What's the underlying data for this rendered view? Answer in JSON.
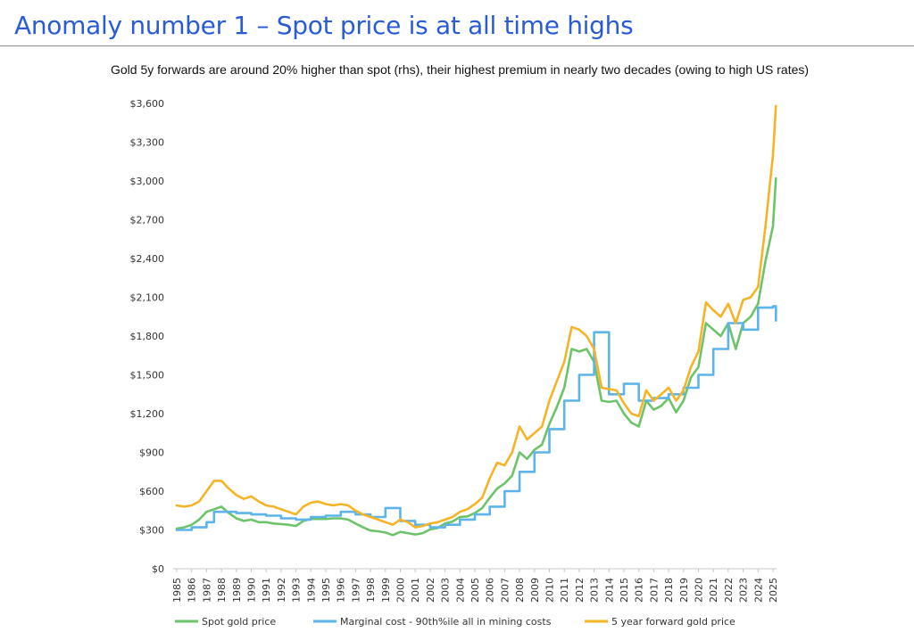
{
  "header": {
    "title": "Anomaly number 1 – Spot price is at all time highs"
  },
  "chart_data": {
    "type": "line",
    "title": "",
    "subtitle": "Gold 5y forwards are around 20% higher than spot (rhs), their highest premium in nearly two decades (owing to high US rates)",
    "xlabel": "",
    "ylabel": "",
    "ylim": [
      0,
      3600
    ],
    "xlim": [
      1985,
      2025
    ],
    "x_tick_labels": [
      "1985",
      "1986",
      "1987",
      "1988",
      "1989",
      "1990",
      "1991",
      "1992",
      "1993",
      "1994",
      "1995",
      "1996",
      "1997",
      "1998",
      "1999",
      "2000",
      "2001",
      "2002",
      "2003",
      "2004",
      "2005",
      "2006",
      "2007",
      "2008",
      "2009",
      "2010",
      "2011",
      "2012",
      "2013",
      "2014",
      "2015",
      "2016",
      "2017",
      "2018",
      "2019",
      "2020",
      "2021",
      "2022",
      "2023",
      "2024",
      "2025"
    ],
    "y_ticks": [
      0,
      300,
      600,
      900,
      1200,
      1500,
      1800,
      2100,
      2400,
      2700,
      3000,
      3300,
      3600
    ],
    "y_tick_labels": [
      "$0",
      "$300",
      "$600",
      "$900",
      "$1,200",
      "$1,500",
      "$1,800",
      "$2,100",
      "$2,400",
      "$2,700",
      "$3,000",
      "$3,300",
      "$3,600"
    ],
    "grid": false,
    "legend_position": "bottom",
    "series": [
      {
        "name": "Spot gold price",
        "color": "#6cc36a",
        "points": [
          [
            1985,
            310
          ],
          [
            1985.5,
            320
          ],
          [
            1986,
            340
          ],
          [
            1986.5,
            380
          ],
          [
            1987,
            440
          ],
          [
            1987.5,
            460
          ],
          [
            1988,
            480
          ],
          [
            1988.5,
            430
          ],
          [
            1989,
            390
          ],
          [
            1989.5,
            370
          ],
          [
            1990,
            380
          ],
          [
            1990.5,
            360
          ],
          [
            1991,
            360
          ],
          [
            1991.5,
            350
          ],
          [
            1992,
            345
          ],
          [
            1992.5,
            340
          ],
          [
            1993,
            330
          ],
          [
            1993.5,
            370
          ],
          [
            1994,
            385
          ],
          [
            1994.5,
            385
          ],
          [
            1995,
            385
          ],
          [
            1995.5,
            390
          ],
          [
            1996,
            390
          ],
          [
            1996.5,
            380
          ],
          [
            1997,
            350
          ],
          [
            1997.5,
            320
          ],
          [
            1998,
            295
          ],
          [
            1998.5,
            290
          ],
          [
            1999,
            280
          ],
          [
            1999.5,
            260
          ],
          [
            2000,
            285
          ],
          [
            2000.5,
            275
          ],
          [
            2001,
            265
          ],
          [
            2001.5,
            275
          ],
          [
            2002,
            305
          ],
          [
            2002.5,
            315
          ],
          [
            2003,
            350
          ],
          [
            2003.5,
            365
          ],
          [
            2004,
            400
          ],
          [
            2004.5,
            405
          ],
          [
            2005,
            430
          ],
          [
            2005.5,
            470
          ],
          [
            2006,
            550
          ],
          [
            2006.5,
            620
          ],
          [
            2007,
            660
          ],
          [
            2007.5,
            720
          ],
          [
            2008,
            900
          ],
          [
            2008.5,
            850
          ],
          [
            2009,
            920
          ],
          [
            2009.5,
            960
          ],
          [
            2010,
            1120
          ],
          [
            2010.5,
            1250
          ],
          [
            2011,
            1400
          ],
          [
            2011.5,
            1700
          ],
          [
            2012,
            1680
          ],
          [
            2012.5,
            1700
          ],
          [
            2013,
            1600
          ],
          [
            2013.5,
            1300
          ],
          [
            2014,
            1290
          ],
          [
            2014.5,
            1300
          ],
          [
            2015,
            1200
          ],
          [
            2015.5,
            1130
          ],
          [
            2016,
            1100
          ],
          [
            2016.5,
            1300
          ],
          [
            2017,
            1230
          ],
          [
            2017.5,
            1260
          ],
          [
            2018,
            1320
          ],
          [
            2018.5,
            1210
          ],
          [
            2019,
            1300
          ],
          [
            2019.5,
            1480
          ],
          [
            2020,
            1560
          ],
          [
            2020.5,
            1900
          ],
          [
            2021,
            1850
          ],
          [
            2021.5,
            1800
          ],
          [
            2022,
            1900
          ],
          [
            2022.5,
            1700
          ],
          [
            2023,
            1900
          ],
          [
            2023.5,
            1950
          ],
          [
            2024,
            2050
          ],
          [
            2024.5,
            2380
          ],
          [
            2025,
            2650
          ],
          [
            2025.2,
            3020
          ]
        ]
      },
      {
        "name": "Marginal cost - 90th%ile all in mining costs",
        "color": "#5cb4ea",
        "points": [
          [
            1985,
            300
          ],
          [
            1986,
            320
          ],
          [
            1987,
            360
          ],
          [
            1987.5,
            440
          ],
          [
            1989,
            430
          ],
          [
            1990,
            420
          ],
          [
            1991,
            410
          ],
          [
            1992,
            390
          ],
          [
            1993,
            380
          ],
          [
            1994,
            400
          ],
          [
            1995,
            410
          ],
          [
            1996,
            440
          ],
          [
            1997,
            420
          ],
          [
            1998,
            400
          ],
          [
            1999,
            470
          ],
          [
            2000,
            370
          ],
          [
            2001,
            340
          ],
          [
            2002,
            320
          ],
          [
            2003,
            340
          ],
          [
            2004,
            380
          ],
          [
            2005,
            420
          ],
          [
            2006,
            480
          ],
          [
            2007,
            600
          ],
          [
            2008,
            750
          ],
          [
            2009,
            900
          ],
          [
            2010,
            1080
          ],
          [
            2011,
            1300
          ],
          [
            2012,
            1500
          ],
          [
            2013,
            1830
          ],
          [
            2014,
            1350
          ],
          [
            2015,
            1430
          ],
          [
            2016,
            1300
          ],
          [
            2017,
            1320
          ],
          [
            2018,
            1350
          ],
          [
            2019,
            1400
          ],
          [
            2020,
            1500
          ],
          [
            2021,
            1700
          ],
          [
            2022,
            1900
          ],
          [
            2023,
            1850
          ],
          [
            2024,
            2020
          ],
          [
            2025,
            2030
          ],
          [
            2025.2,
            1920
          ]
        ]
      },
      {
        "name": "5 year forward gold price",
        "color": "#f5b325",
        "points": [
          [
            1985,
            490
          ],
          [
            1985.5,
            480
          ],
          [
            1986,
            490
          ],
          [
            1986.5,
            520
          ],
          [
            1987,
            600
          ],
          [
            1987.5,
            680
          ],
          [
            1988,
            680
          ],
          [
            1988.5,
            620
          ],
          [
            1989,
            570
          ],
          [
            1989.5,
            540
          ],
          [
            1990,
            560
          ],
          [
            1990.5,
            520
          ],
          [
            1991,
            490
          ],
          [
            1991.5,
            480
          ],
          [
            1992,
            460
          ],
          [
            1992.5,
            440
          ],
          [
            1993,
            420
          ],
          [
            1993.5,
            480
          ],
          [
            1994,
            510
          ],
          [
            1994.5,
            520
          ],
          [
            1995,
            500
          ],
          [
            1995.5,
            490
          ],
          [
            1996,
            500
          ],
          [
            1996.5,
            490
          ],
          [
            1997,
            450
          ],
          [
            1997.5,
            420
          ],
          [
            1998,
            400
          ],
          [
            1998.5,
            380
          ],
          [
            1999,
            360
          ],
          [
            1999.5,
            340
          ],
          [
            2000,
            380
          ],
          [
            2000.5,
            360
          ],
          [
            2001,
            320
          ],
          [
            2001.5,
            330
          ],
          [
            2002,
            350
          ],
          [
            2002.5,
            360
          ],
          [
            2003,
            380
          ],
          [
            2003.5,
            400
          ],
          [
            2004,
            440
          ],
          [
            2004.5,
            460
          ],
          [
            2005,
            500
          ],
          [
            2005.5,
            550
          ],
          [
            2006,
            700
          ],
          [
            2006.5,
            820
          ],
          [
            2007,
            800
          ],
          [
            2007.5,
            900
          ],
          [
            2008,
            1100
          ],
          [
            2008.5,
            1000
          ],
          [
            2009,
            1050
          ],
          [
            2009.5,
            1100
          ],
          [
            2010,
            1300
          ],
          [
            2010.5,
            1450
          ],
          [
            2011,
            1600
          ],
          [
            2011.5,
            1870
          ],
          [
            2012,
            1850
          ],
          [
            2012.5,
            1800
          ],
          [
            2013,
            1700
          ],
          [
            2013.5,
            1400
          ],
          [
            2014,
            1390
          ],
          [
            2014.5,
            1380
          ],
          [
            2015,
            1280
          ],
          [
            2015.5,
            1200
          ],
          [
            2016,
            1180
          ],
          [
            2016.5,
            1380
          ],
          [
            2017,
            1300
          ],
          [
            2017.5,
            1350
          ],
          [
            2018,
            1400
          ],
          [
            2018.5,
            1300
          ],
          [
            2019,
            1380
          ],
          [
            2019.5,
            1560
          ],
          [
            2020,
            1680
          ],
          [
            2020.5,
            2060
          ],
          [
            2021,
            2000
          ],
          [
            2021.5,
            1950
          ],
          [
            2022,
            2050
          ],
          [
            2022.5,
            1900
          ],
          [
            2023,
            2080
          ],
          [
            2023.5,
            2100
          ],
          [
            2024,
            2180
          ],
          [
            2024.5,
            2650
          ],
          [
            2025,
            3200
          ],
          [
            2025.2,
            3580
          ]
        ]
      }
    ]
  }
}
